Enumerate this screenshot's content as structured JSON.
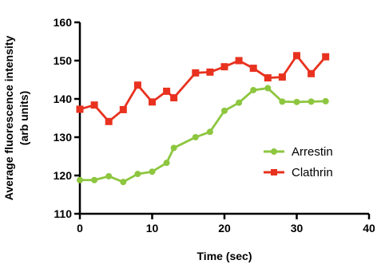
{
  "chart_data": {
    "type": "line",
    "xlabel": "Time (sec)",
    "ylabel_lines": [
      "Average fluorescence intensity",
      "(arb units)"
    ],
    "xlim": [
      0,
      40
    ],
    "ylim": [
      110,
      160
    ],
    "xticks": [
      0,
      10,
      20,
      30,
      40
    ],
    "yticks": [
      110,
      120,
      130,
      140,
      150,
      160
    ],
    "grid": false,
    "legend_position": "right-middle",
    "series": [
      {
        "name": "Arrestin",
        "color": "#8dc63f",
        "marker": "circle",
        "x": [
          0,
          2,
          4,
          6,
          8,
          10,
          12,
          13,
          16,
          18,
          20,
          22,
          24,
          26,
          28,
          30,
          32,
          34
        ],
        "y": [
          118.8,
          118.8,
          119.8,
          118.3,
          120.4,
          121.0,
          123.3,
          127.2,
          130.0,
          131.4,
          136.9,
          139.0,
          142.3,
          142.8,
          139.3,
          139.2,
          139.3,
          139.4
        ]
      },
      {
        "name": "Clathrin",
        "color": "#e8321f",
        "marker": "square",
        "x": [
          0,
          2,
          4,
          6,
          8,
          10,
          12,
          13,
          16,
          18,
          20,
          22,
          24,
          26,
          28,
          30,
          32,
          34
        ],
        "y": [
          137.3,
          138.4,
          134.1,
          137.2,
          143.6,
          139.2,
          142.0,
          140.3,
          146.8,
          147.0,
          148.4,
          150.0,
          148.0,
          145.5,
          145.7,
          151.3,
          146.6,
          151.0
        ]
      }
    ]
  }
}
